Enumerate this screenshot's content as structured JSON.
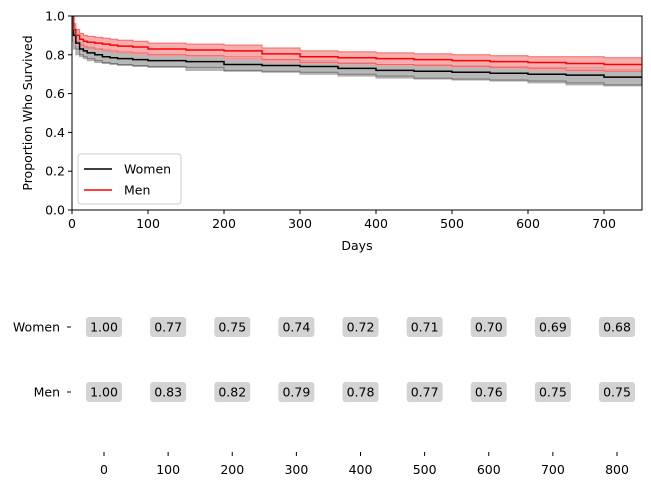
{
  "chart_data": [
    {
      "type": "line",
      "title": "",
      "xlabel": "Days",
      "ylabel": "Proportion Who Survived",
      "xlim": [
        0,
        750
      ],
      "ylim": [
        0,
        1.0
      ],
      "xticks": [
        0,
        100,
        200,
        300,
        400,
        500,
        600,
        700
      ],
      "yticks": [
        0.0,
        0.2,
        0.4,
        0.6,
        0.8,
        1.0
      ],
      "grid": false,
      "legend_position": "bottom-left",
      "series": [
        {
          "name": "Women",
          "color": "#000000",
          "band_color": "#aaaaaa",
          "x": [
            0,
            2,
            5,
            10,
            15,
            20,
            30,
            40,
            50,
            60,
            80,
            100,
            150,
            200,
            250,
            300,
            350,
            400,
            450,
            500,
            550,
            600,
            650,
            700,
            750
          ],
          "y": [
            1.0,
            0.9,
            0.86,
            0.83,
            0.82,
            0.81,
            0.8,
            0.79,
            0.785,
            0.78,
            0.775,
            0.77,
            0.765,
            0.75,
            0.745,
            0.74,
            0.73,
            0.72,
            0.715,
            0.71,
            0.705,
            0.7,
            0.695,
            0.685,
            0.68
          ],
          "lower": [
            1.0,
            0.87,
            0.83,
            0.8,
            0.79,
            0.78,
            0.77,
            0.76,
            0.755,
            0.75,
            0.745,
            0.74,
            0.735,
            0.72,
            0.715,
            0.71,
            0.7,
            0.69,
            0.68,
            0.675,
            0.67,
            0.665,
            0.655,
            0.645,
            0.64
          ],
          "upper": [
            1.0,
            0.93,
            0.89,
            0.86,
            0.85,
            0.84,
            0.83,
            0.82,
            0.815,
            0.81,
            0.805,
            0.8,
            0.795,
            0.78,
            0.775,
            0.77,
            0.76,
            0.75,
            0.75,
            0.745,
            0.74,
            0.735,
            0.735,
            0.725,
            0.72
          ]
        },
        {
          "name": "Men",
          "color": "#ff0000",
          "band_color": "#f4a0a0",
          "x": [
            0,
            2,
            5,
            10,
            15,
            20,
            30,
            40,
            50,
            60,
            80,
            100,
            150,
            200,
            250,
            300,
            350,
            400,
            450,
            500,
            550,
            600,
            650,
            700,
            750
          ],
          "y": [
            1.0,
            0.93,
            0.9,
            0.88,
            0.87,
            0.865,
            0.86,
            0.855,
            0.85,
            0.845,
            0.84,
            0.83,
            0.825,
            0.82,
            0.805,
            0.79,
            0.785,
            0.78,
            0.775,
            0.77,
            0.765,
            0.76,
            0.755,
            0.75,
            0.75
          ],
          "lower": [
            1.0,
            0.9,
            0.87,
            0.85,
            0.84,
            0.835,
            0.83,
            0.825,
            0.82,
            0.815,
            0.81,
            0.8,
            0.795,
            0.79,
            0.775,
            0.76,
            0.755,
            0.75,
            0.745,
            0.74,
            0.735,
            0.73,
            0.72,
            0.715,
            0.715
          ],
          "upper": [
            1.0,
            0.96,
            0.93,
            0.91,
            0.9,
            0.895,
            0.89,
            0.885,
            0.88,
            0.875,
            0.87,
            0.86,
            0.855,
            0.85,
            0.835,
            0.82,
            0.815,
            0.81,
            0.805,
            0.8,
            0.795,
            0.79,
            0.79,
            0.785,
            0.785
          ]
        }
      ]
    },
    {
      "type": "table",
      "title": "",
      "x_ticks": [
        0,
        100,
        200,
        300,
        400,
        500,
        600,
        700,
        800
      ],
      "rows": [
        {
          "label": "Women",
          "values": [
            "1.00",
            "0.77",
            "0.75",
            "0.74",
            "0.72",
            "0.71",
            "0.70",
            "0.69",
            "0.68"
          ]
        },
        {
          "label": "Men",
          "values": [
            "1.00",
            "0.83",
            "0.82",
            "0.79",
            "0.78",
            "0.77",
            "0.76",
            "0.75",
            "0.75"
          ]
        }
      ],
      "cell_color": "#d3d3d3"
    }
  ]
}
